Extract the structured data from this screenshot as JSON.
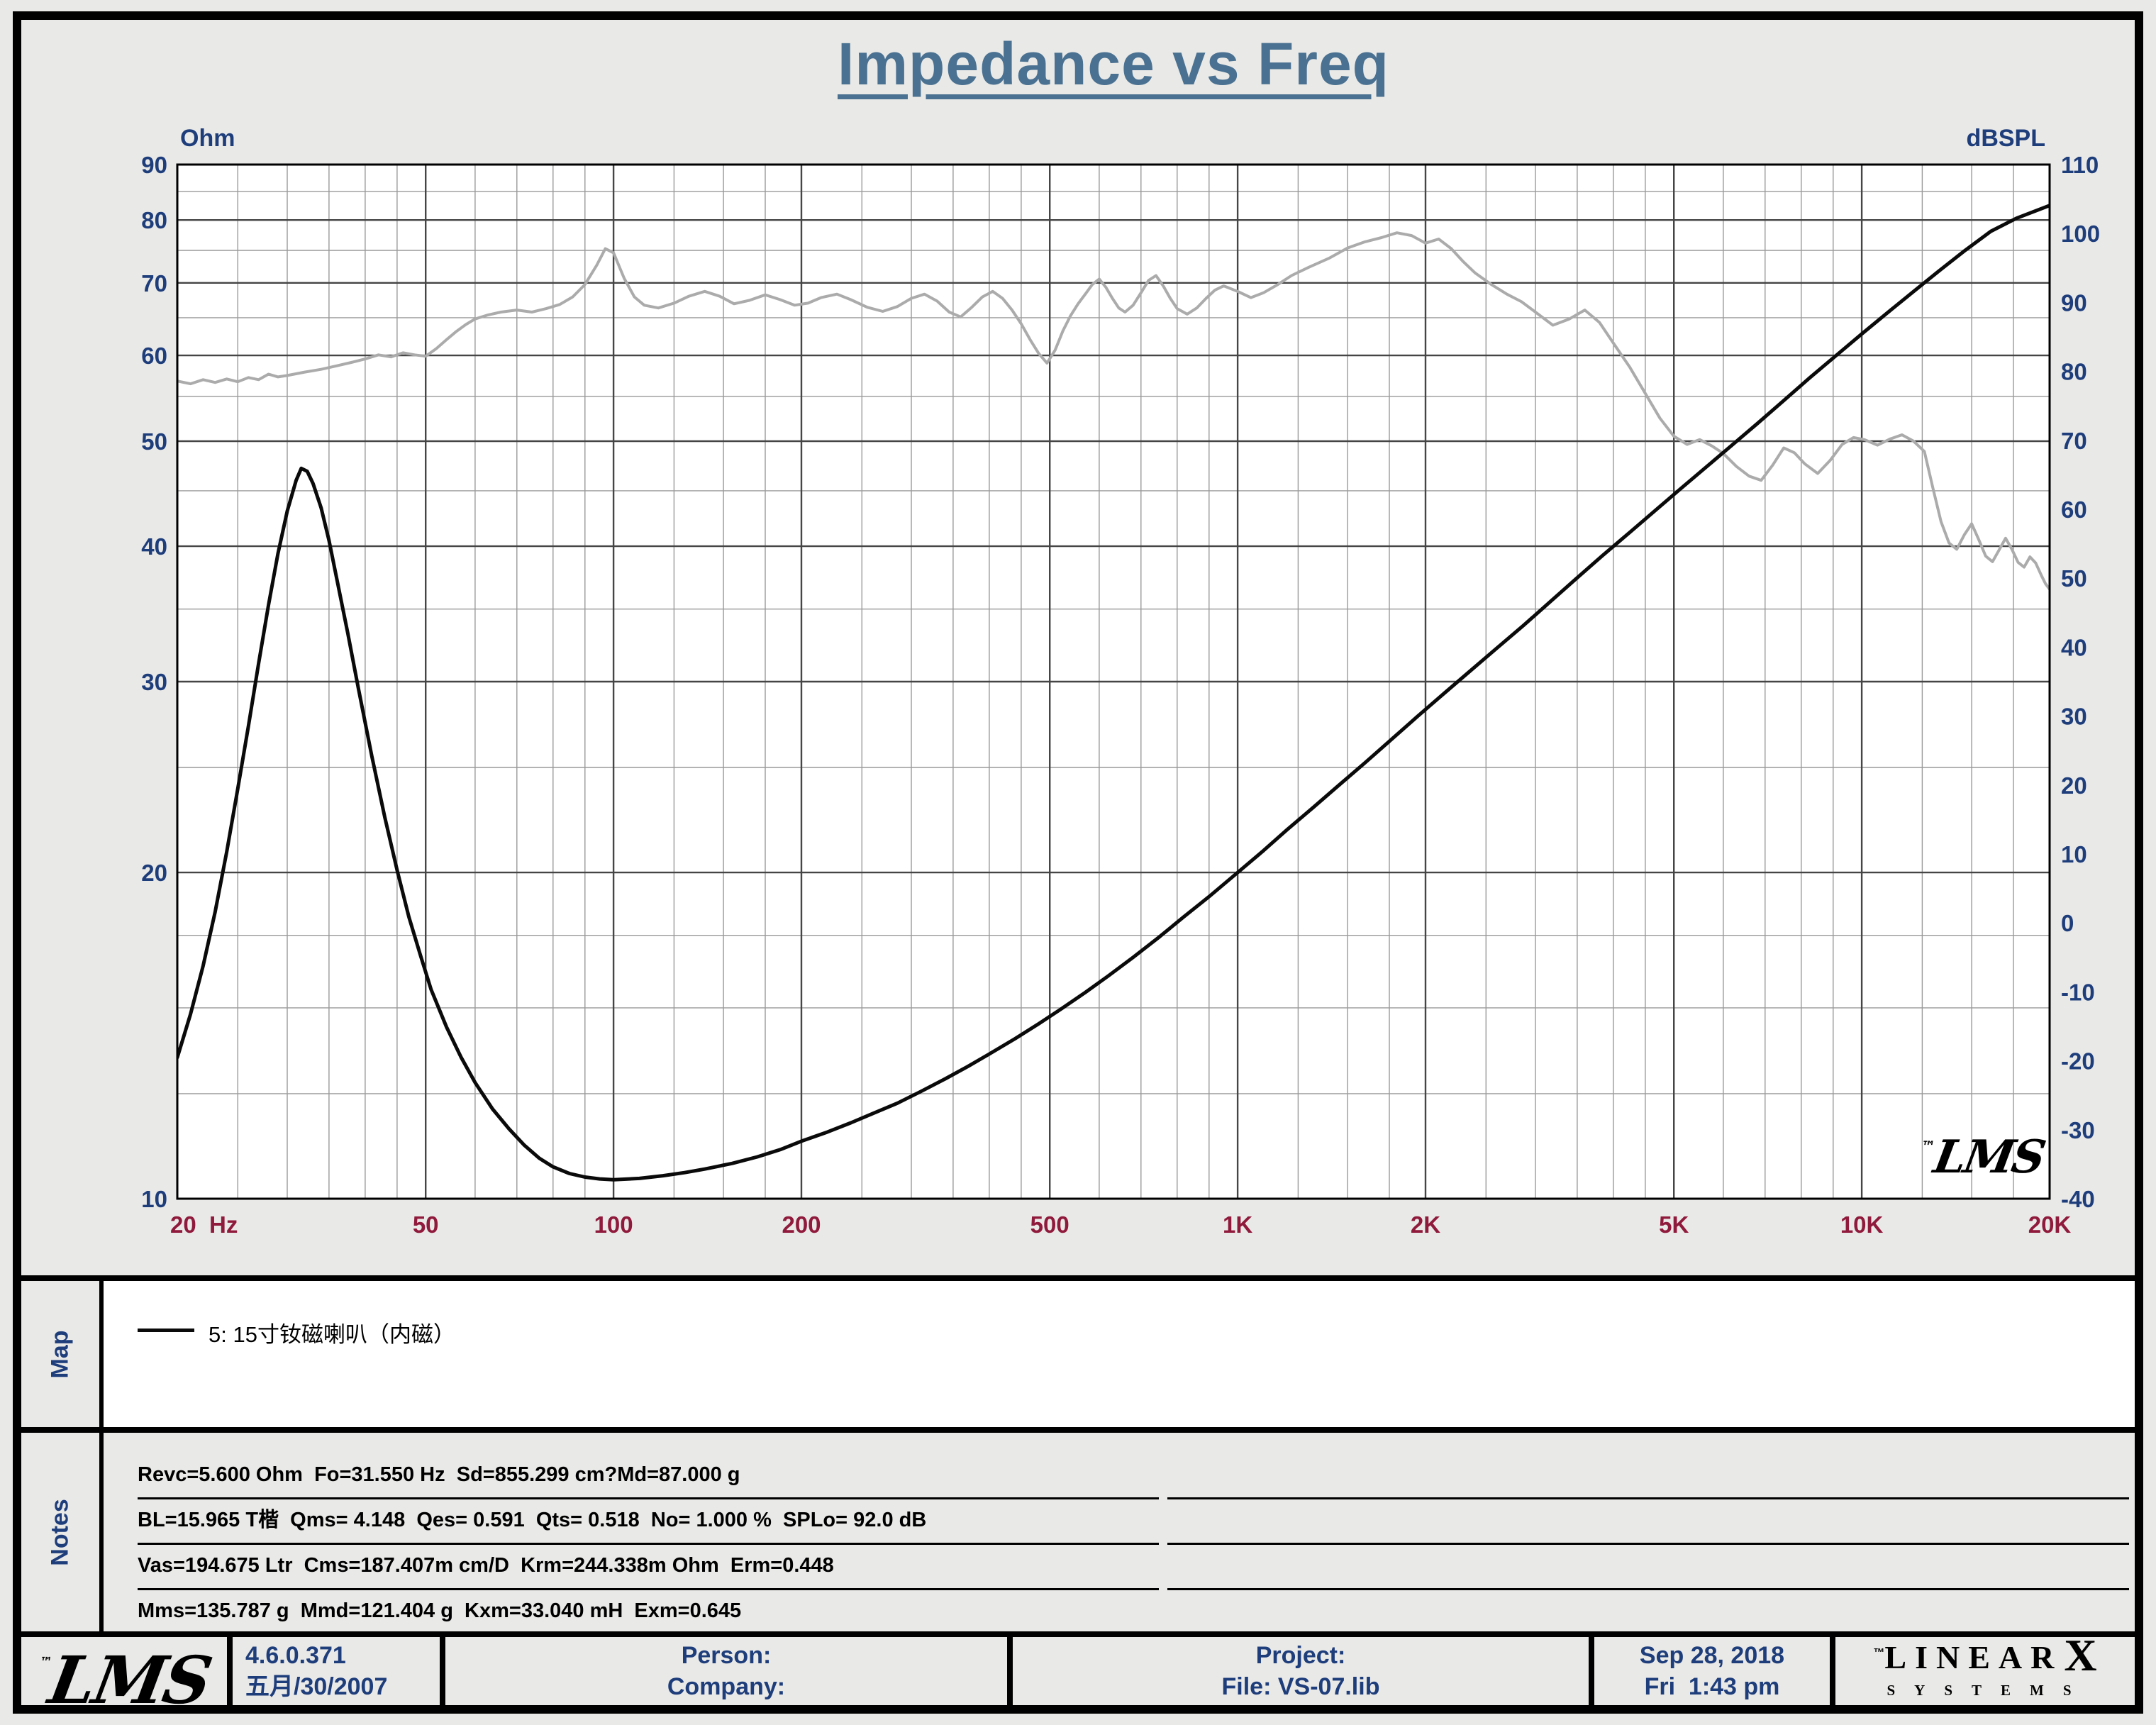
{
  "chart": {
    "title": "Impedance vs Freq",
    "left_unit": "Ohm",
    "right_unit": "dBSPL"
  },
  "chart_data": {
    "type": "line",
    "title": "Impedance vs Freq",
    "x_axis": {
      "label": "Hz",
      "scale": "log",
      "min": 20,
      "max": 20000,
      "ticks": [
        {
          "f": 20,
          "label": "20  Hz",
          "anchor": "start"
        },
        {
          "f": 50,
          "label": "50"
        },
        {
          "f": 100,
          "label": "100"
        },
        {
          "f": 200,
          "label": "200"
        },
        {
          "f": 500,
          "label": "500"
        },
        {
          "f": 1000,
          "label": "1K"
        },
        {
          "f": 2000,
          "label": "2K"
        },
        {
          "f": 5000,
          "label": "5K"
        },
        {
          "f": 10000,
          "label": "10K"
        },
        {
          "f": 20000,
          "label": "20K"
        }
      ]
    },
    "y_left": {
      "label": "Ohm",
      "scale": "log",
      "min": 10,
      "max": 90,
      "ticks": [
        90,
        80,
        70,
        60,
        50,
        40,
        30,
        20,
        10
      ]
    },
    "y_right": {
      "label": "dBSPL",
      "scale": "linear",
      "min": -40,
      "max": 110,
      "ticks": [
        110,
        100,
        90,
        80,
        70,
        60,
        50,
        40,
        30,
        20,
        10,
        0,
        -10,
        -20,
        -30,
        -40
      ]
    },
    "grid": {
      "x_major": [
        20,
        50,
        100,
        200,
        500,
        1000,
        2000,
        5000,
        10000,
        20000
      ],
      "x_minor": [
        25,
        30,
        35,
        40,
        45,
        60,
        70,
        80,
        90,
        125,
        150,
        175,
        250,
        300,
        350,
        400,
        450,
        600,
        700,
        800,
        900,
        1250,
        1500,
        1750,
        2500,
        3000,
        3500,
        4000,
        4500,
        6000,
        7000,
        8000,
        9000,
        12500,
        15000,
        17500
      ],
      "y_major": [
        10,
        20,
        30,
        40,
        50,
        60,
        70,
        80,
        90
      ],
      "y_minor": [
        12.5,
        15,
        17.5,
        25,
        35,
        45,
        55,
        65,
        75,
        85
      ]
    },
    "series": [
      {
        "name": "spl-response",
        "axis": "right",
        "color": "#ababab",
        "stroke_width": 4,
        "points": [
          [
            20,
            78.6
          ],
          [
            21,
            78.2
          ],
          [
            22,
            78.8
          ],
          [
            23,
            78.4
          ],
          [
            24,
            78.9
          ],
          [
            25,
            78.5
          ],
          [
            26,
            79.1
          ],
          [
            27,
            78.8
          ],
          [
            28,
            79.6
          ],
          [
            29,
            79.2
          ],
          [
            30,
            79.4
          ],
          [
            32,
            79.9
          ],
          [
            34,
            80.3
          ],
          [
            36,
            80.8
          ],
          [
            38,
            81.3
          ],
          [
            40,
            81.8
          ],
          [
            42,
            82.4
          ],
          [
            44,
            82.1
          ],
          [
            46,
            82.7
          ],
          [
            48,
            82.4
          ],
          [
            50,
            82.2
          ],
          [
            52,
            83.3
          ],
          [
            54,
            84.6
          ],
          [
            56,
            85.8
          ],
          [
            58,
            86.8
          ],
          [
            60,
            87.6
          ],
          [
            63,
            88.2
          ],
          [
            66,
            88.6
          ],
          [
            70,
            88.9
          ],
          [
            74,
            88.6
          ],
          [
            78,
            89.1
          ],
          [
            82,
            89.7
          ],
          [
            86,
            90.8
          ],
          [
            90,
            92.6
          ],
          [
            94,
            95.4
          ],
          [
            97,
            97.8
          ],
          [
            100,
            97.2
          ],
          [
            104,
            93.5
          ],
          [
            108,
            90.8
          ],
          [
            112,
            89.6
          ],
          [
            118,
            89.2
          ],
          [
            125,
            89.9
          ],
          [
            132,
            90.9
          ],
          [
            140,
            91.6
          ],
          [
            148,
            90.9
          ],
          [
            156,
            89.8
          ],
          [
            165,
            90.3
          ],
          [
            175,
            91.1
          ],
          [
            185,
            90.4
          ],
          [
            195,
            89.6
          ],
          [
            205,
            89.9
          ],
          [
            215,
            90.7
          ],
          [
            228,
            91.2
          ],
          [
            240,
            90.4
          ],
          [
            255,
            89.3
          ],
          [
            270,
            88.7
          ],
          [
            285,
            89.4
          ],
          [
            300,
            90.6
          ],
          [
            315,
            91.2
          ],
          [
            330,
            90.2
          ],
          [
            345,
            88.6
          ],
          [
            360,
            87.9
          ],
          [
            375,
            89.3
          ],
          [
            390,
            90.8
          ],
          [
            405,
            91.6
          ],
          [
            420,
            90.6
          ],
          [
            435,
            88.9
          ],
          [
            450,
            86.9
          ],
          [
            465,
            84.6
          ],
          [
            480,
            82.6
          ],
          [
            495,
            81.2
          ],
          [
            510,
            83.1
          ],
          [
            525,
            85.9
          ],
          [
            540,
            88.1
          ],
          [
            555,
            89.8
          ],
          [
            570,
            91.2
          ],
          [
            585,
            92.6
          ],
          [
            600,
            93.4
          ],
          [
            615,
            92.2
          ],
          [
            630,
            90.6
          ],
          [
            645,
            89.2
          ],
          [
            660,
            88.6
          ],
          [
            680,
            89.6
          ],
          [
            700,
            91.4
          ],
          [
            720,
            93.2
          ],
          [
            740,
            93.9
          ],
          [
            760,
            92.4
          ],
          [
            780,
            90.6
          ],
          [
            800,
            89.1
          ],
          [
            830,
            88.3
          ],
          [
            860,
            89.2
          ],
          [
            890,
            90.6
          ],
          [
            920,
            91.8
          ],
          [
            950,
            92.4
          ],
          [
            1000,
            91.6
          ],
          [
            1050,
            90.7
          ],
          [
            1100,
            91.4
          ],
          [
            1160,
            92.6
          ],
          [
            1220,
            93.9
          ],
          [
            1300,
            95.1
          ],
          [
            1400,
            96.4
          ],
          [
            1500,
            97.9
          ],
          [
            1600,
            98.8
          ],
          [
            1700,
            99.4
          ],
          [
            1800,
            100.1
          ],
          [
            1900,
            99.7
          ],
          [
            2000,
            98.6
          ],
          [
            2100,
            99.2
          ],
          [
            2200,
            97.8
          ],
          [
            2300,
            95.9
          ],
          [
            2400,
            94.3
          ],
          [
            2550,
            92.6
          ],
          [
            2700,
            91.2
          ],
          [
            2850,
            90.1
          ],
          [
            3000,
            88.6
          ],
          [
            3200,
            86.7
          ],
          [
            3400,
            87.6
          ],
          [
            3600,
            88.9
          ],
          [
            3800,
            87.1
          ],
          [
            4000,
            84.1
          ],
          [
            4250,
            80.6
          ],
          [
            4500,
            76.8
          ],
          [
            4750,
            73.2
          ],
          [
            5000,
            70.6
          ],
          [
            5250,
            69.4
          ],
          [
            5500,
            70.1
          ],
          [
            5750,
            69.2
          ],
          [
            6000,
            68.1
          ],
          [
            6300,
            66.2
          ],
          [
            6600,
            64.8
          ],
          [
            6900,
            64.2
          ],
          [
            7200,
            66.4
          ],
          [
            7500,
            68.9
          ],
          [
            7800,
            68.2
          ],
          [
            8100,
            66.6
          ],
          [
            8500,
            65.2
          ],
          [
            8900,
            67.1
          ],
          [
            9300,
            69.4
          ],
          [
            9700,
            70.4
          ],
          [
            10100,
            70.1
          ],
          [
            10600,
            69.3
          ],
          [
            11100,
            70.2
          ],
          [
            11600,
            70.8
          ],
          [
            12100,
            69.9
          ],
          [
            12600,
            68.4
          ],
          [
            13000,
            63.1
          ],
          [
            13400,
            58.2
          ],
          [
            13800,
            55.1
          ],
          [
            14200,
            54.2
          ],
          [
            14600,
            56.3
          ],
          [
            15000,
            57.9
          ],
          [
            15400,
            55.6
          ],
          [
            15800,
            53.2
          ],
          [
            16200,
            52.4
          ],
          [
            16600,
            54.1
          ],
          [
            17000,
            55.8
          ],
          [
            17400,
            54.2
          ],
          [
            17800,
            52.3
          ],
          [
            18200,
            51.6
          ],
          [
            18600,
            53.1
          ],
          [
            19000,
            52.2
          ],
          [
            19400,
            50.4
          ],
          [
            19700,
            49.2
          ],
          [
            20000,
            48.4
          ]
        ]
      },
      {
        "name": "impedance",
        "axis": "left",
        "color": "#0a0a0a",
        "stroke_width": 5,
        "points": [
          [
            20,
            13.5
          ],
          [
            21,
            14.8
          ],
          [
            22,
            16.4
          ],
          [
            23,
            18.4
          ],
          [
            24,
            20.9
          ],
          [
            25,
            23.9
          ],
          [
            26,
            27.3
          ],
          [
            27,
            31.2
          ],
          [
            28,
            35.3
          ],
          [
            29,
            39.4
          ],
          [
            30,
            43.1
          ],
          [
            31,
            46.0
          ],
          [
            31.6,
            47.2
          ],
          [
            32.3,
            46.9
          ],
          [
            33,
            45.7
          ],
          [
            34,
            43.4
          ],
          [
            35,
            40.5
          ],
          [
            36,
            37.4
          ],
          [
            37.5,
            33.3
          ],
          [
            39,
            29.6
          ],
          [
            41,
            25.6
          ],
          [
            43,
            22.5
          ],
          [
            45,
            20.1
          ],
          [
            47,
            18.2
          ],
          [
            49,
            16.8
          ],
          [
            51,
            15.6
          ],
          [
            54,
            14.4
          ],
          [
            57,
            13.5
          ],
          [
            60,
            12.8
          ],
          [
            64,
            12.1
          ],
          [
            68,
            11.6
          ],
          [
            72,
            11.2
          ],
          [
            76,
            10.9
          ],
          [
            80,
            10.7
          ],
          [
            85,
            10.55
          ],
          [
            90,
            10.47
          ],
          [
            95,
            10.43
          ],
          [
            100,
            10.41
          ],
          [
            110,
            10.44
          ],
          [
            120,
            10.5
          ],
          [
            130,
            10.57
          ],
          [
            140,
            10.65
          ],
          [
            155,
            10.78
          ],
          [
            170,
            10.93
          ],
          [
            185,
            11.1
          ],
          [
            200,
            11.3
          ],
          [
            220,
            11.52
          ],
          [
            240,
            11.75
          ],
          [
            260,
            11.98
          ],
          [
            285,
            12.25
          ],
          [
            310,
            12.55
          ],
          [
            340,
            12.9
          ],
          [
            370,
            13.25
          ],
          [
            400,
            13.6
          ],
          [
            440,
            14.05
          ],
          [
            480,
            14.5
          ],
          [
            520,
            14.95
          ],
          [
            570,
            15.5
          ],
          [
            620,
            16.05
          ],
          [
            680,
            16.7
          ],
          [
            750,
            17.45
          ],
          [
            820,
            18.2
          ],
          [
            900,
            19.0
          ],
          [
            1000,
            20.0
          ],
          [
            1100,
            20.95
          ],
          [
            1200,
            21.9
          ],
          [
            1320,
            22.95
          ],
          [
            1450,
            24.05
          ],
          [
            1600,
            25.25
          ],
          [
            1760,
            26.5
          ],
          [
            1940,
            27.85
          ],
          [
            2140,
            29.25
          ],
          [
            2360,
            30.7
          ],
          [
            2600,
            32.2
          ],
          [
            2870,
            33.8
          ],
          [
            3160,
            35.5
          ],
          [
            3480,
            37.3
          ],
          [
            3840,
            39.2
          ],
          [
            4250,
            41.2
          ],
          [
            4700,
            43.3
          ],
          [
            5150,
            45.3
          ],
          [
            5650,
            47.4
          ],
          [
            6200,
            49.6
          ],
          [
            6800,
            51.9
          ],
          [
            7500,
            54.5
          ],
          [
            8250,
            57.2
          ],
          [
            9100,
            60.0
          ],
          [
            10000,
            62.8
          ],
          [
            11000,
            65.7
          ],
          [
            12100,
            68.7
          ],
          [
            13300,
            71.8
          ],
          [
            14600,
            74.9
          ],
          [
            16100,
            78.1
          ],
          [
            17700,
            80.3
          ],
          [
            20000,
            82.5
          ]
        ]
      }
    ]
  },
  "map": {
    "label": "Map",
    "legend": "5: 15寸钕磁喇叭（内磁）"
  },
  "notes": {
    "label": "Notes",
    "lines": [
      "Revc=5.600 Ohm  Fo=31.550 Hz  Sd=855.299 cm?Md=87.000 g",
      "BL=15.965 T楷  Qms= 4.148  Qes= 0.591  Qts= 0.518  No= 1.000 %  SPLo= 92.0 dB",
      "Vas=194.675 Ltr  Cms=187.407m cm/D  Krm=244.338m Ohm  Erm=0.448",
      "Mms=135.787 g  Mmd=121.404 g  Kxm=33.040 mH  Exm=0.645"
    ]
  },
  "footer": {
    "version": "4.6.0.371",
    "build_date": "五月/30/2007",
    "person_label": "Person:",
    "company_label": "Company:",
    "project_label": "Project:",
    "file_label": "File: VS-07.lib",
    "print_date": "Sep 28, 2018",
    "print_time": "Fri  1:43 pm"
  },
  "logos": {
    "tm": "™",
    "lms": "LMS",
    "linearx_letters": "LINEAR",
    "linearx_x": "X",
    "linearx_systems": "SYSTEMS"
  }
}
